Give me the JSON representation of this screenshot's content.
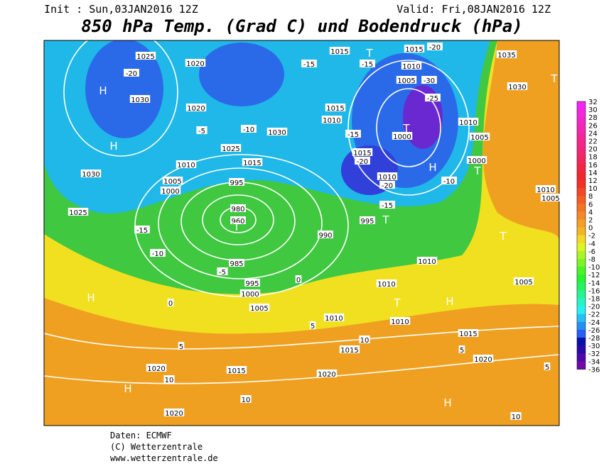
{
  "header": {
    "init": "Init : Sun,03JAN2016 12Z",
    "valid": "Valid: Fri,08JAN2016 12Z",
    "title": "850 hPa Temp. (Grad C) und Bodendruck (hPa)"
  },
  "map": {
    "labels": [
      "1025",
      "-20",
      "1020",
      "1030",
      "H",
      "H",
      "1020",
      "-5",
      "-10",
      "1030",
      "1025",
      "1015",
      "1010",
      "1005",
      "1000",
      "995",
      "980",
      "960",
      "T",
      "985",
      "995",
      "1000",
      "1005",
      "-10",
      "-15",
      "1030",
      "1025",
      "H",
      "H",
      "1020",
      "1020",
      "-15",
      "1015",
      "T",
      "-15",
      "1015",
      "1010",
      "-15",
      "1015",
      "-20",
      "1010",
      "-20",
      "1000",
      "T",
      "-25",
      "-30",
      "1005",
      "1010",
      "1015",
      "-20",
      "1035",
      "1030",
      "T",
      "1010",
      "1005",
      "1000",
      "H",
      "-10",
      "T",
      "1010",
      "1005",
      "995",
      "990",
      "T",
      "-15",
      "1010",
      "1005",
      "T",
      "1010",
      "1010",
      "T",
      "H",
      "1010",
      "1015",
      "1020",
      "1015",
      "1015",
      "1020",
      "H",
      "10",
      "10",
      "10",
      "0",
      "0",
      "-5",
      "5",
      "5",
      "10",
      "5",
      "5"
    ]
  },
  "colorbar": {
    "labels": [
      32,
      30,
      28,
      26,
      24,
      22,
      20,
      18,
      16,
      14,
      12,
      10,
      8,
      6,
      4,
      2,
      0,
      -2,
      -4,
      -6,
      -8,
      -10,
      -12,
      -14,
      -16,
      -18,
      -20,
      -22,
      -24,
      -26,
      -28,
      -30,
      -32,
      -34,
      -36
    ]
  },
  "footer": {
    "source": "Daten: ECMWF",
    "copyright": "(C) Wetterzentrale",
    "url": "www.wetterzentrale.de"
  }
}
